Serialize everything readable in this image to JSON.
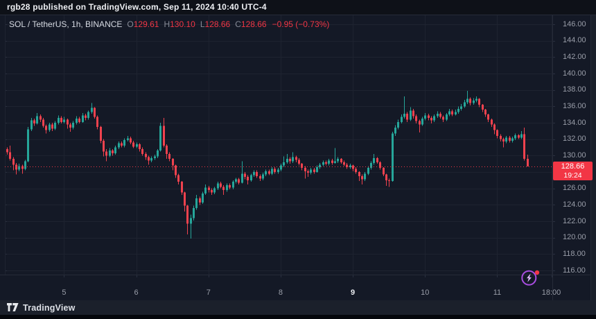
{
  "attribution": {
    "text": "rgb28 published on TradingView.com, Sep 11, 2024 10:40 UTC-4"
  },
  "legend": {
    "symbol_text": "SOL / TetherUS, 1h, BINANCE",
    "o_label": "O",
    "o": "129.61",
    "h_label": "H",
    "h": "130.10",
    "l_label": "L",
    "l": "128.66",
    "c_label": "C",
    "c": "128.66",
    "change": "−0.95 (−0.73%)"
  },
  "price_axis": {
    "labels": [
      "146.00",
      "144.00",
      "142.00",
      "140.00",
      "138.00",
      "136.00",
      "134.00",
      "132.00",
      "130.00",
      "128.00",
      "126.00",
      "124.00",
      "122.00",
      "120.00",
      "118.00",
      "116.00"
    ],
    "badge": {
      "price": "128.66",
      "countdown": "19:24"
    }
  },
  "footer": {
    "brand": "TradingView"
  },
  "colors": {
    "up": "#26a69a",
    "down": "#f0424e",
    "accent": "#f23645",
    "grid": "#1e2330",
    "border": "#262b38",
    "tick": "#2a3040",
    "axis_text": "#9a9ea9",
    "icon_purple": "#a84de0",
    "icon_bolt": "#dcb9f8",
    "dot_red": "#f23645"
  },
  "chart_data": {
    "type": "candlestick",
    "symbol": "SOL / TetherUS",
    "interval": "1h",
    "exchange": "BINANCE",
    "start": "2024-09-04 05:00",
    "end": "2024-09-11 10:00",
    "price_line": 128.66,
    "ylim": [
      116,
      146
    ],
    "grid": true,
    "legend_position": "top-left",
    "ticks": [
      {
        "label": "5",
        "index": 19,
        "strong": false
      },
      {
        "label": "6",
        "index": 43,
        "strong": false
      },
      {
        "label": "7",
        "index": 67,
        "strong": false
      },
      {
        "label": "8",
        "index": 91,
        "strong": false
      },
      {
        "label": "9",
        "index": 115,
        "strong": true
      },
      {
        "label": "10",
        "index": 139,
        "strong": false
      },
      {
        "label": "11",
        "index": 163,
        "strong": false
      },
      {
        "label": "18:00",
        "index": 181,
        "strong": false
      }
    ],
    "candles": [
      [
        130.8,
        131.0,
        130.1,
        130.4
      ],
      [
        130.4,
        131.2,
        129.4,
        129.6
      ],
      [
        129.6,
        129.8,
        128.2,
        128.9
      ],
      [
        128.9,
        129.1,
        127.7,
        128.3
      ],
      [
        128.3,
        129.0,
        128.1,
        128.7
      ],
      [
        128.7,
        128.9,
        127.8,
        128.4
      ],
      [
        128.4,
        129.5,
        128.2,
        129.3
      ],
      [
        129.3,
        133.5,
        129.2,
        133.2
      ],
      [
        133.2,
        134.6,
        133.0,
        134.3
      ],
      [
        134.3,
        134.5,
        133.6,
        133.9
      ],
      [
        133.9,
        135.2,
        133.8,
        134.8
      ],
      [
        134.8,
        135.0,
        134.1,
        134.4
      ],
      [
        134.4,
        134.6,
        133.4,
        133.6
      ],
      [
        133.6,
        133.8,
        132.7,
        133.1
      ],
      [
        133.1,
        134.0,
        132.9,
        133.8
      ],
      [
        133.8,
        134.0,
        133.0,
        133.3
      ],
      [
        133.3,
        134.2,
        133.1,
        134.0
      ],
      [
        134.0,
        134.9,
        133.8,
        134.6
      ],
      [
        134.6,
        134.8,
        133.9,
        134.1
      ],
      [
        134.1,
        134.7,
        133.9,
        134.4
      ],
      [
        134.4,
        134.5,
        133.3,
        133.8
      ],
      [
        133.8,
        134.0,
        132.9,
        133.4
      ],
      [
        133.4,
        134.2,
        133.2,
        134.0
      ],
      [
        134.0,
        134.8,
        133.8,
        134.5
      ],
      [
        134.5,
        134.7,
        133.9,
        134.1
      ],
      [
        134.1,
        135.2,
        134.0,
        134.9
      ],
      [
        134.9,
        135.1,
        134.3,
        134.6
      ],
      [
        134.6,
        135.5,
        134.4,
        135.3
      ],
      [
        135.3,
        136.4,
        135.1,
        135.8
      ],
      [
        135.8,
        135.9,
        134.5,
        134.7
      ],
      [
        134.7,
        134.9,
        133.2,
        133.5
      ],
      [
        133.5,
        133.6,
        131.5,
        131.8
      ],
      [
        131.8,
        132.0,
        129.9,
        130.5
      ],
      [
        130.5,
        130.8,
        129.3,
        130.0
      ],
      [
        130.0,
        130.9,
        129.8,
        130.6
      ],
      [
        130.6,
        130.8,
        130.0,
        130.3
      ],
      [
        130.3,
        131.2,
        130.1,
        131.0
      ],
      [
        131.0,
        131.7,
        130.8,
        131.5
      ],
      [
        131.5,
        131.7,
        131.0,
        131.2
      ],
      [
        131.2,
        132.1,
        131.0,
        131.9
      ],
      [
        131.9,
        132.4,
        131.7,
        132.1
      ],
      [
        132.1,
        132.3,
        131.4,
        131.6
      ],
      [
        131.6,
        131.8,
        130.9,
        131.1
      ],
      [
        131.1,
        131.6,
        130.9,
        131.4
      ],
      [
        131.4,
        131.5,
        130.5,
        130.8
      ],
      [
        130.8,
        131.0,
        130.0,
        130.2
      ],
      [
        130.2,
        130.4,
        129.5,
        129.8
      ],
      [
        129.8,
        130.0,
        128.9,
        129.4
      ],
      [
        129.4,
        129.9,
        129.2,
        129.7
      ],
      [
        129.7,
        130.1,
        129.5,
        129.9
      ],
      [
        129.9,
        130.8,
        129.7,
        130.6
      ],
      [
        130.6,
        134.0,
        130.5,
        133.6
      ],
      [
        133.6,
        134.6,
        131.0,
        131.2
      ],
      [
        131.2,
        131.4,
        129.6,
        130.2
      ],
      [
        130.2,
        130.4,
        129.3,
        129.6
      ],
      [
        129.6,
        129.7,
        128.2,
        128.8
      ],
      [
        128.8,
        128.9,
        127.3,
        127.6
      ],
      [
        127.6,
        127.8,
        126.5,
        126.8
      ],
      [
        126.8,
        126.9,
        125.2,
        125.5
      ],
      [
        125.5,
        125.6,
        123.2,
        123.9
      ],
      [
        123.9,
        124.0,
        120.4,
        121.7
      ],
      [
        121.7,
        122.8,
        119.9,
        122.4
      ],
      [
        122.4,
        123.9,
        122.1,
        123.6
      ],
      [
        123.6,
        125.2,
        123.4,
        124.8
      ],
      [
        124.8,
        125.0,
        124.0,
        124.3
      ],
      [
        124.3,
        125.6,
        124.1,
        125.4
      ],
      [
        125.4,
        126.5,
        125.2,
        126.1
      ],
      [
        126.1,
        126.3,
        125.5,
        125.8
      ],
      [
        125.8,
        126.0,
        125.2,
        125.5
      ],
      [
        125.5,
        126.2,
        125.3,
        126.0
      ],
      [
        126.0,
        126.8,
        125.8,
        126.6
      ],
      [
        126.6,
        126.8,
        126.0,
        126.2
      ],
      [
        126.2,
        126.4,
        125.2,
        125.8
      ],
      [
        125.8,
        126.6,
        125.6,
        126.4
      ],
      [
        126.4,
        126.6,
        125.9,
        126.1
      ],
      [
        126.1,
        127.0,
        125.9,
        126.8
      ],
      [
        126.8,
        127.3,
        126.6,
        127.1
      ],
      [
        127.1,
        127.3,
        126.5,
        126.7
      ],
      [
        126.7,
        129.3,
        126.6,
        127.8
      ],
      [
        127.8,
        128.0,
        127.1,
        127.4
      ],
      [
        127.4,
        127.6,
        126.5,
        127.0
      ],
      [
        127.0,
        127.8,
        126.8,
        127.6
      ],
      [
        127.6,
        128.2,
        127.4,
        128.0
      ],
      [
        128.0,
        128.2,
        127.3,
        127.5
      ],
      [
        127.5,
        127.7,
        126.9,
        127.2
      ],
      [
        127.2,
        127.9,
        127.0,
        127.7
      ],
      [
        127.7,
        128.3,
        127.5,
        128.1
      ],
      [
        128.1,
        128.3,
        127.6,
        127.8
      ],
      [
        127.8,
        128.6,
        127.6,
        128.4
      ],
      [
        128.4,
        128.6,
        127.8,
        128.0
      ],
      [
        128.0,
        128.5,
        127.8,
        128.3
      ],
      [
        128.3,
        129.0,
        128.1,
        128.8
      ],
      [
        128.8,
        129.9,
        128.6,
        129.2
      ],
      [
        129.2,
        130.2,
        129.0,
        129.6
      ],
      [
        129.6,
        129.8,
        129.0,
        129.3
      ],
      [
        129.3,
        130.4,
        129.1,
        129.8
      ],
      [
        129.8,
        130.0,
        129.2,
        129.5
      ],
      [
        129.5,
        129.7,
        128.8,
        129.0
      ],
      [
        129.0,
        129.1,
        128.2,
        128.5
      ],
      [
        128.5,
        128.7,
        127.2,
        128.1
      ],
      [
        128.1,
        128.3,
        127.4,
        127.9
      ],
      [
        127.9,
        128.5,
        127.7,
        128.3
      ],
      [
        128.3,
        128.5,
        127.8,
        128.0
      ],
      [
        128.0,
        128.8,
        127.9,
        128.6
      ],
      [
        128.6,
        129.1,
        128.4,
        128.9
      ],
      [
        128.9,
        129.4,
        128.7,
        129.2
      ],
      [
        129.2,
        129.4,
        128.8,
        129.0
      ],
      [
        129.0,
        129.6,
        128.8,
        129.4
      ],
      [
        129.4,
        129.6,
        128.9,
        129.1
      ],
      [
        129.1,
        130.9,
        129.0,
        129.3
      ],
      [
        129.3,
        129.8,
        129.1,
        129.6
      ],
      [
        129.6,
        129.7,
        129.0,
        129.2
      ],
      [
        129.2,
        129.4,
        128.7,
        128.9
      ],
      [
        128.9,
        129.1,
        128.4,
        128.6
      ],
      [
        128.6,
        129.0,
        128.4,
        128.8
      ],
      [
        128.8,
        128.9,
        128.1,
        128.4
      ],
      [
        128.4,
        128.6,
        127.8,
        128.0
      ],
      [
        128.0,
        128.1,
        126.9,
        127.5
      ],
      [
        127.5,
        127.7,
        126.5,
        127.1
      ],
      [
        127.1,
        128.0,
        126.9,
        127.8
      ],
      [
        127.8,
        128.7,
        127.6,
        128.5
      ],
      [
        128.5,
        129.3,
        128.3,
        129.1
      ],
      [
        129.1,
        130.2,
        128.9,
        129.7
      ],
      [
        129.7,
        129.8,
        129.0,
        129.2
      ],
      [
        129.2,
        129.3,
        128.3,
        128.5
      ],
      [
        128.5,
        128.6,
        127.5,
        127.7
      ],
      [
        127.7,
        127.8,
        126.3,
        127.0
      ],
      [
        127.0,
        127.2,
        126.2,
        126.9
      ],
      [
        126.9,
        132.9,
        126.8,
        132.7
      ],
      [
        132.7,
        133.7,
        132.4,
        133.4
      ],
      [
        133.4,
        134.4,
        133.2,
        134.1
      ],
      [
        134.1,
        135.0,
        133.9,
        134.7
      ],
      [
        134.7,
        137.2,
        134.5,
        135.1
      ],
      [
        135.1,
        135.3,
        134.1,
        134.4
      ],
      [
        134.4,
        135.9,
        134.2,
        135.5
      ],
      [
        135.5,
        135.7,
        134.5,
        134.8
      ],
      [
        134.8,
        135.0,
        133.9,
        134.2
      ],
      [
        134.2,
        134.4,
        132.8,
        133.8
      ],
      [
        133.8,
        134.7,
        133.6,
        134.5
      ],
      [
        134.5,
        135.2,
        134.3,
        134.9
      ],
      [
        134.9,
        135.1,
        134.3,
        134.6
      ],
      [
        134.6,
        134.8,
        133.9,
        134.3
      ],
      [
        134.3,
        135.0,
        134.1,
        134.8
      ],
      [
        134.8,
        135.4,
        134.6,
        135.1
      ],
      [
        135.1,
        135.3,
        134.5,
        134.7
      ],
      [
        134.7,
        134.9,
        134.1,
        134.4
      ],
      [
        134.4,
        135.2,
        134.2,
        135.0
      ],
      [
        135.0,
        135.7,
        134.8,
        135.4
      ],
      [
        135.4,
        135.6,
        134.8,
        135.0
      ],
      [
        135.0,
        135.6,
        134.9,
        135.3
      ],
      [
        135.3,
        136.0,
        135.1,
        135.7
      ],
      [
        135.7,
        136.3,
        135.5,
        136.0
      ],
      [
        136.0,
        136.8,
        135.8,
        136.5
      ],
      [
        136.5,
        137.9,
        136.3,
        136.9
      ],
      [
        136.9,
        137.1,
        136.1,
        136.4
      ],
      [
        136.4,
        137.0,
        136.2,
        136.7
      ],
      [
        136.7,
        137.2,
        136.5,
        136.9
      ],
      [
        136.9,
        137.0,
        135.9,
        136.2
      ],
      [
        136.2,
        136.3,
        135.3,
        135.6
      ],
      [
        135.6,
        135.7,
        134.7,
        135.0
      ],
      [
        135.0,
        135.1,
        134.1,
        134.4
      ],
      [
        134.4,
        134.5,
        133.5,
        133.8
      ],
      [
        133.8,
        133.9,
        132.6,
        133.1
      ],
      [
        133.1,
        133.2,
        132.1,
        132.4
      ],
      [
        132.4,
        132.6,
        131.7,
        132.0
      ],
      [
        132.0,
        132.2,
        131.0,
        131.7
      ],
      [
        131.7,
        132.4,
        131.5,
        132.2
      ],
      [
        132.2,
        132.4,
        131.6,
        131.8
      ],
      [
        131.8,
        132.3,
        131.6,
        132.1
      ],
      [
        132.1,
        132.7,
        131.9,
        132.5
      ],
      [
        132.5,
        132.6,
        132.0,
        132.2
      ],
      [
        132.2,
        133.0,
        132.0,
        132.6
      ],
      [
        132.6,
        133.4,
        129.4,
        129.61
      ],
      [
        129.61,
        130.1,
        128.66,
        128.66
      ]
    ]
  }
}
